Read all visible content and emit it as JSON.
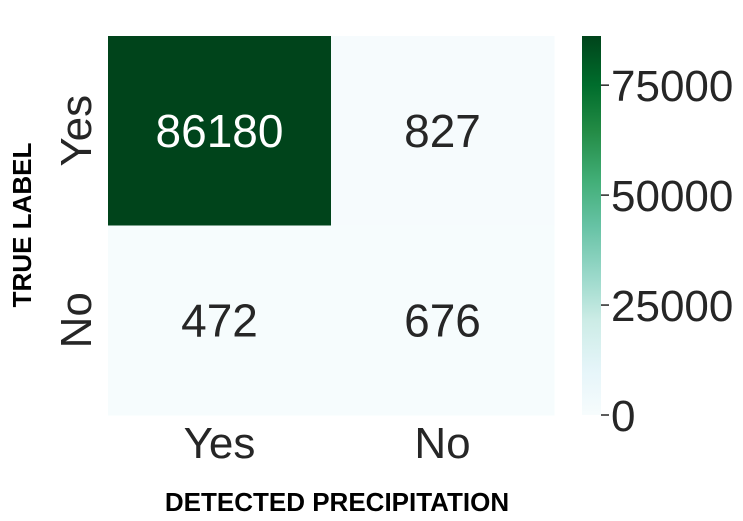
{
  "chart_data": {
    "type": "heatmap",
    "title": "",
    "xlabel": "DETECTED PRECIPITATION",
    "ylabel": "TRUE LABEL",
    "x_categories": [
      "Yes",
      "No"
    ],
    "y_categories": [
      "Yes",
      "No"
    ],
    "values": [
      [
        86180,
        827
      ],
      [
        472,
        676
      ]
    ],
    "value_labels": [
      [
        "86180",
        "827"
      ],
      [
        "472",
        "676"
      ]
    ],
    "colormap": "Greens",
    "color_low": "#f7fcfd",
    "color_high": "#00441b",
    "colorbar": {
      "min": 0,
      "max": 86180,
      "ticks": [
        0,
        25000,
        50000,
        75000
      ],
      "tick_labels": [
        "0",
        "25000",
        "50000",
        "75000"
      ]
    },
    "grid": false,
    "legend": "colorbar-right"
  }
}
